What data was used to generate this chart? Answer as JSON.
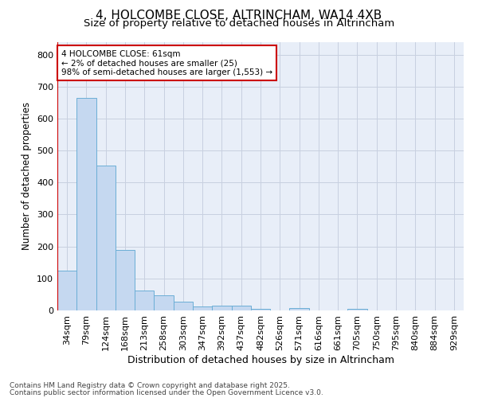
{
  "title": "4, HOLCOMBE CLOSE, ALTRINCHAM, WA14 4XB",
  "subtitle": "Size of property relative to detached houses in Altrincham",
  "xlabel": "Distribution of detached houses by size in Altrincham",
  "ylabel": "Number of detached properties",
  "categories": [
    "34sqm",
    "79sqm",
    "124sqm",
    "168sqm",
    "213sqm",
    "258sqm",
    "303sqm",
    "347sqm",
    "392sqm",
    "437sqm",
    "482sqm",
    "526sqm",
    "571sqm",
    "616sqm",
    "661sqm",
    "705sqm",
    "750sqm",
    "795sqm",
    "840sqm",
    "884sqm",
    "929sqm"
  ],
  "values": [
    125,
    665,
    452,
    188,
    63,
    47,
    27,
    12,
    16,
    14,
    5,
    0,
    7,
    0,
    0,
    5,
    0,
    0,
    0,
    0,
    0
  ],
  "bar_color": "#c5d8f0",
  "bar_edge_color": "#6baed6",
  "highlight_color": "#cc0000",
  "annotation_text": "4 HOLCOMBE CLOSE: 61sqm\n← 2% of detached houses are smaller (25)\n98% of semi-detached houses are larger (1,553) →",
  "ylim": [
    0,
    840
  ],
  "yticks": [
    0,
    100,
    200,
    300,
    400,
    500,
    600,
    700,
    800
  ],
  "figure_background": "#ffffff",
  "plot_background": "#e8eef8",
  "grid_color": "#c8d0e0",
  "footer_line1": "Contains HM Land Registry data © Crown copyright and database right 2025.",
  "footer_line2": "Contains public sector information licensed under the Open Government Licence v3.0.",
  "title_fontsize": 11,
  "subtitle_fontsize": 9.5,
  "xlabel_fontsize": 9,
  "ylabel_fontsize": 8.5,
  "tick_fontsize": 8,
  "annotation_fontsize": 7.5,
  "footer_fontsize": 6.5
}
